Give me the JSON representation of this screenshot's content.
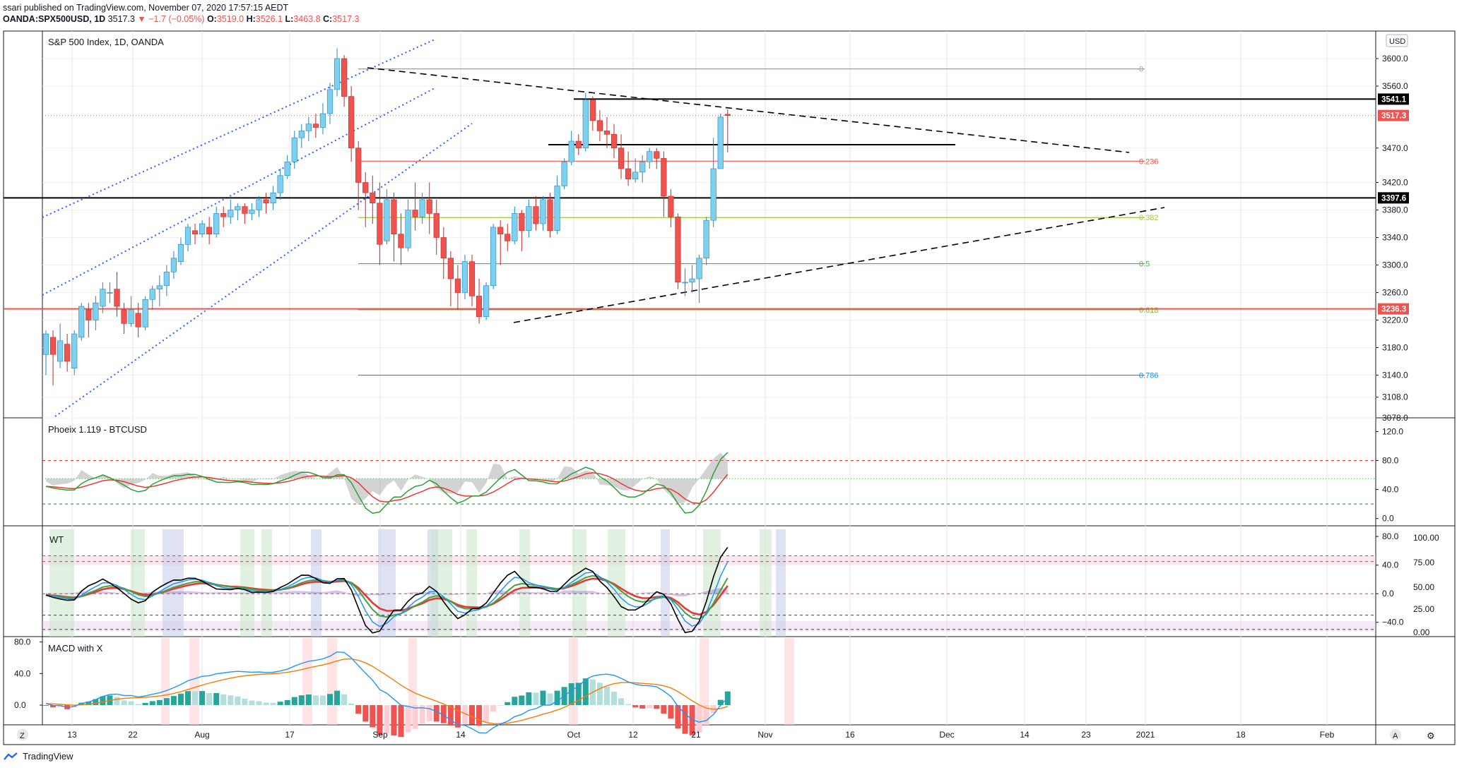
{
  "header": {
    "line1": "ssari published on TradingView.com, November 07, 2020 17:57:15 AEDT",
    "symbol": "OANDA:SPX500USD, 1D",
    "last": "3517.3",
    "change": "−1.7 (−0.05%)",
    "open_label": "O:",
    "open": "3519.0",
    "high_label": "H:",
    "high": "3526.1",
    "low_label": "L:",
    "low": "3463.8",
    "close_label": "C:",
    "close": "3517.3"
  },
  "colors": {
    "up": "#7fd0ee",
    "down": "#ef5350",
    "grid": "#e6e6e6",
    "phoenix_green": "#2e9e3a",
    "phoenix_red": "#e53935",
    "wt_blue": "#2196f3",
    "macd_blue": "#2196f3",
    "macd_orange": "#f57c00",
    "hist_up": "#26a69a",
    "hist_down": "#ef5350"
  },
  "panes": {
    "main_title": "S&P 500 Index, 1D, OANDA",
    "phoenix_title": "Phoeix 1.119 - BTCUSD",
    "wt_title": "WT",
    "macd_title": "MACD with X"
  },
  "price_axis": {
    "currency": "USD",
    "ticks": [
      "3600.0",
      "3560.0",
      "3470.0",
      "3420.0",
      "3380.0",
      "3340.0",
      "3300.0",
      "3260.0",
      "3220.0",
      "3180.0",
      "3140.0",
      "3108.0",
      "3078.0"
    ],
    "badges": [
      {
        "label": "3541.1",
        "value": 3541.1,
        "color": "#000000"
      },
      {
        "label": "3517.3",
        "value": 3517.3,
        "color": "#ef5350"
      },
      {
        "label": "3397.6",
        "value": 3397.6,
        "color": "#000000"
      },
      {
        "label": "3236.3",
        "value": 3236.3,
        "color": "#ef5350"
      }
    ]
  },
  "phoenix_axis": {
    "ticks": [
      "120.0",
      "80.0",
      "40.0",
      "0.0"
    ]
  },
  "wt_axis": {
    "left_ticks": [
      "80.0",
      "40.0",
      "0.0",
      "−40.0"
    ],
    "right_ticks": [
      "100.00",
      "75.00",
      "50.00",
      "25.00",
      "0.00"
    ]
  },
  "macd_axis": {
    "ticks": [
      "80.0",
      "40.0",
      "0.0"
    ]
  },
  "time_axis": {
    "labels": [
      "13",
      "22",
      "Aug",
      "17",
      "Sep",
      "14",
      "Oct",
      "12",
      "21",
      "Nov",
      "16",
      "Dec",
      "14",
      "23",
      "2021",
      "18",
      "Feb"
    ],
    "left_button": "Z",
    "right_buttons": [
      "A",
      "⚙"
    ]
  },
  "fib": [
    {
      "label": "0",
      "value": 3585,
      "color": "#9e9e9e"
    },
    {
      "label": "0.236",
      "value": 3451,
      "color": "#ef5350"
    },
    {
      "label": "0.382",
      "value": 3369,
      "color": "#9ccc30"
    },
    {
      "label": "0.5",
      "value": 3302,
      "color": "#4caf50"
    },
    {
      "label": "0.618",
      "value": 3235,
      "color": "#7cb342"
    },
    {
      "label": "0.786",
      "value": 3140,
      "color": "#1e88e5"
    }
  ],
  "footer": {
    "brand": "TradingView"
  },
  "chart_data": {
    "type": "candlestick",
    "title": "S&P 500 Index, 1D, OANDA",
    "series_name": "OANDA:SPX500USD",
    "ylim": [
      3078,
      3640
    ],
    "candles": [
      [
        3170,
        3200,
        3140,
        3205
      ],
      [
        3195,
        3170,
        3125,
        3205
      ],
      [
        3160,
        3190,
        3150,
        3215
      ],
      [
        3185,
        3160,
        3145,
        3200
      ],
      [
        3150,
        3200,
        3140,
        3205
      ],
      [
        3195,
        3240,
        3190,
        3245
      ],
      [
        3235,
        3220,
        3195,
        3245
      ],
      [
        3220,
        3245,
        3205,
        3255
      ],
      [
        3240,
        3265,
        3230,
        3275
      ],
      [
        3260,
        3260,
        3245,
        3275
      ],
      [
        3265,
        3240,
        3225,
        3290
      ],
      [
        3235,
        3215,
        3200,
        3245
      ],
      [
        3215,
        3235,
        3210,
        3255
      ],
      [
        3230,
        3210,
        3195,
        3245
      ],
      [
        3210,
        3250,
        3205,
        3255
      ],
      [
        3250,
        3265,
        3235,
        3270
      ],
      [
        3265,
        3270,
        3240,
        3285
      ],
      [
        3270,
        3290,
        3255,
        3300
      ],
      [
        3290,
        3310,
        3280,
        3320
      ],
      [
        3305,
        3330,
        3300,
        3340
      ],
      [
        3330,
        3355,
        3320,
        3360
      ],
      [
        3350,
        3345,
        3330,
        3360
      ],
      [
        3345,
        3360,
        3340,
        3365
      ],
      [
        3355,
        3345,
        3330,
        3370
      ],
      [
        3345,
        3375,
        3340,
        3385
      ],
      [
        3375,
        3370,
        3355,
        3385
      ],
      [
        3370,
        3380,
        3360,
        3395
      ],
      [
        3380,
        3385,
        3365,
        3390
      ],
      [
        3385,
        3375,
        3360,
        3390
      ],
      [
        3375,
        3380,
        3365,
        3390
      ],
      [
        3380,
        3395,
        3370,
        3400
      ],
      [
        3395,
        3390,
        3375,
        3405
      ],
      [
        3390,
        3405,
        3380,
        3415
      ],
      [
        3405,
        3430,
        3395,
        3440
      ],
      [
        3430,
        3450,
        3425,
        3460
      ],
      [
        3450,
        3485,
        3440,
        3495
      ],
      [
        3485,
        3495,
        3470,
        3505
      ],
      [
        3495,
        3505,
        3480,
        3515
      ],
      [
        3505,
        3500,
        3485,
        3520
      ],
      [
        3500,
        3520,
        3490,
        3535
      ],
      [
        3520,
        3555,
        3505,
        3565
      ],
      [
        3555,
        3600,
        3545,
        3615
      ],
      [
        3600,
        3545,
        3530,
        3605
      ],
      [
        3545,
        3470,
        3450,
        3560
      ],
      [
        3470,
        3420,
        3380,
        3480
      ],
      [
        3420,
        3405,
        3355,
        3435
      ],
      [
        3405,
        3390,
        3360,
        3430
      ],
      [
        3390,
        3330,
        3300,
        3420
      ],
      [
        3335,
        3395,
        3330,
        3410
      ],
      [
        3395,
        3345,
        3305,
        3405
      ],
      [
        3345,
        3325,
        3300,
        3375
      ],
      [
        3325,
        3380,
        3320,
        3395
      ],
      [
        3380,
        3370,
        3350,
        3420
      ],
      [
        3370,
        3395,
        3360,
        3405
      ],
      [
        3395,
        3375,
        3345,
        3420
      ],
      [
        3375,
        3340,
        3315,
        3395
      ],
      [
        3340,
        3310,
        3280,
        3355
      ],
      [
        3310,
        3280,
        3240,
        3320
      ],
      [
        3280,
        3260,
        3235,
        3300
      ],
      [
        3260,
        3305,
        3250,
        3315
      ],
      [
        3305,
        3255,
        3240,
        3315
      ],
      [
        3255,
        3225,
        3215,
        3280
      ],
      [
        3225,
        3270,
        3220,
        3275
      ],
      [
        3270,
        3355,
        3265,
        3360
      ],
      [
        3355,
        3345,
        3300,
        3365
      ],
      [
        3345,
        3335,
        3320,
        3360
      ],
      [
        3335,
        3375,
        3330,
        3385
      ],
      [
        3375,
        3350,
        3320,
        3380
      ],
      [
        3350,
        3385,
        3340,
        3395
      ],
      [
        3385,
        3360,
        3350,
        3400
      ],
      [
        3360,
        3395,
        3350,
        3400
      ],
      [
        3395,
        3350,
        3340,
        3405
      ],
      [
        3350,
        3415,
        3345,
        3430
      ],
      [
        3415,
        3450,
        3410,
        3455
      ],
      [
        3450,
        3480,
        3445,
        3495
      ],
      [
        3480,
        3470,
        3460,
        3490
      ],
      [
        3470,
        3540,
        3465,
        3550
      ],
      [
        3540,
        3510,
        3495,
        3545
      ],
      [
        3510,
        3495,
        3480,
        3525
      ],
      [
        3495,
        3490,
        3470,
        3515
      ],
      [
        3490,
        3470,
        3455,
        3505
      ],
      [
        3470,
        3440,
        3425,
        3490
      ],
      [
        3440,
        3425,
        3415,
        3465
      ],
      [
        3425,
        3435,
        3420,
        3455
      ],
      [
        3435,
        3450,
        3420,
        3460
      ],
      [
        3450,
        3465,
        3440,
        3470
      ],
      [
        3465,
        3455,
        3440,
        3470
      ],
      [
        3455,
        3400,
        3370,
        3465
      ],
      [
        3400,
        3370,
        3355,
        3410
      ],
      [
        3370,
        3275,
        3265,
        3375
      ],
      [
        3275,
        3275,
        3255,
        3295
      ],
      [
        3275,
        3280,
        3260,
        3300
      ],
      [
        3280,
        3310,
        3245,
        3315
      ],
      [
        3310,
        3365,
        3300,
        3370
      ],
      [
        3365,
        3440,
        3355,
        3485
      ],
      [
        3440,
        3515,
        3440,
        3520
      ],
      [
        3519,
        3517.3,
        3463.8,
        3526.1
      ]
    ],
    "horizontal_levels": [
      3541.1,
      3397.6,
      3236.3
    ],
    "fibonacci": [
      {
        "level": "0",
        "price": 3585
      },
      {
        "level": "0.236",
        "price": 3451
      },
      {
        "level": "0.382",
        "price": 3369
      },
      {
        "level": "0.5",
        "price": 3302
      },
      {
        "level": "0.618",
        "price": 3235
      },
      {
        "level": "0.786",
        "price": 3140
      }
    ],
    "indicators": {
      "phoenix": {
        "ylim": [
          -10,
          135
        ],
        "ref_levels": [
          80,
          55,
          20
        ]
      },
      "wt": {
        "ylim": [
          -60,
          90
        ],
        "ref_levels": [
          53,
          45,
          0,
          -30,
          -50
        ]
      },
      "macd": {
        "ylim": [
          -25,
          85
        ]
      }
    },
    "x_axis_labels": [
      "13",
      "22",
      "Aug",
      "17",
      "Sep",
      "14",
      "Oct",
      "12",
      "21",
      "Nov",
      "16",
      "Dec",
      "14",
      "23",
      "2021",
      "18",
      "Feb"
    ]
  }
}
